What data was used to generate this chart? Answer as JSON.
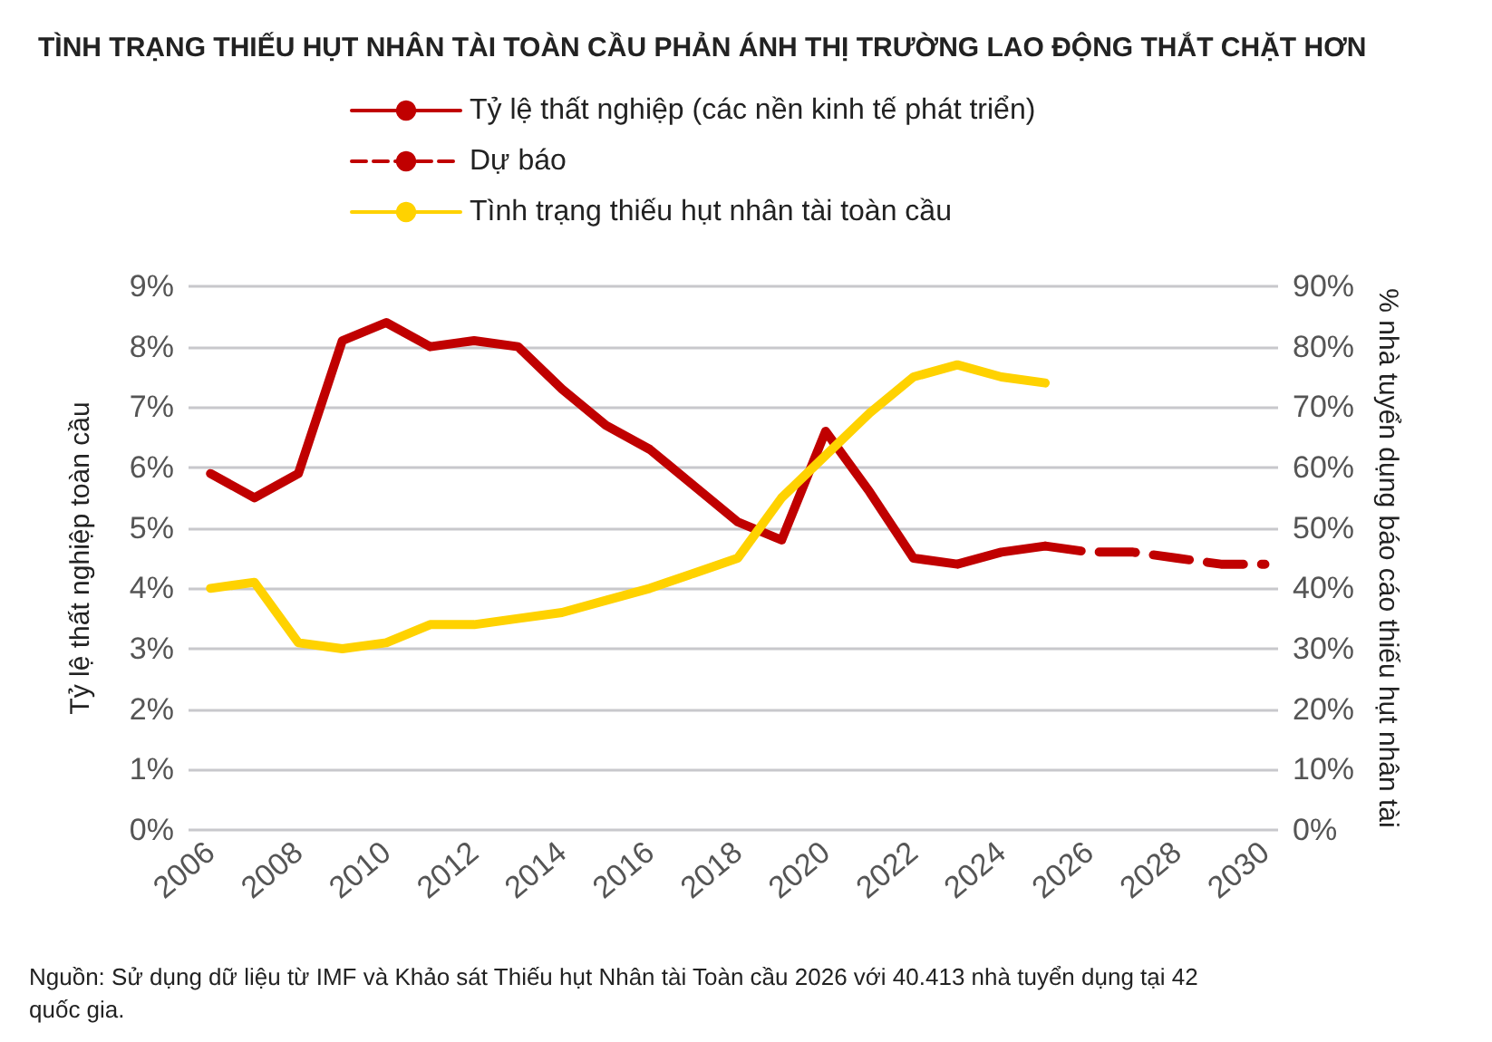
{
  "chart_data": {
    "type": "line",
    "title": "TÌNH TRẠNG THIẾU HỤT NHÂN TÀI TOÀN CẦU PHẢN ÁNH THỊ TRƯỜNG LAO ĐỘNG THẮT CHẶT HƠN",
    "ylabel": "Tỷ lệ thất nghiệp toàn cầu",
    "y2label": "% nhà tuyển dụng báo cáo thiếu hụt nhân tài",
    "annotations": [
      "Nguồn: Sử dụng dữ liệu từ IMF và Khảo sát Thiếu hụt Nhân tài Toàn cầu 2026 với 40.413 nhà tuyển dụng tại 42 quốc gia."
    ],
    "x": [
      2006,
      2007,
      2008,
      2009,
      2010,
      2011,
      2012,
      2013,
      2014,
      2015,
      2016,
      2017,
      2018,
      2019,
      2020,
      2021,
      2022,
      2023,
      2024,
      2025
    ],
    "series": [
      {
        "name": "Tỷ lệ thất nghiệp (các nền kinh tế phát triển)",
        "color": "#c00000",
        "values": [
          5.9,
          5.5,
          5.9,
          8.1,
          8.4,
          8.0,
          8.1,
          8.0,
          7.3,
          6.7,
          6.3,
          5.7,
          5.1,
          4.8,
          6.6,
          5.6,
          4.5,
          4.4,
          4.6,
          4.7
        ]
      },
      {
        "name": "Dự báo",
        "color": "#c00000",
        "line_style": "dashed",
        "x": [
          2025,
          2026,
          2027,
          2028,
          2029,
          2030
        ],
        "values": [
          4.7,
          4.6,
          4.6,
          4.5,
          4.4,
          4.4
        ]
      },
      {
        "name": "Tình trạng thiếu hụt nhân tài toàn cầu",
        "color": "#ffd200",
        "axis": "y2",
        "values": [
          40,
          41,
          31,
          30,
          31,
          34,
          34,
          35,
          36,
          38,
          40,
          42.5,
          45,
          55,
          62,
          69,
          75,
          77,
          75,
          74
        ]
      }
    ],
    "xlim": [
      2005.5,
      2030.3
    ],
    "xticks": [
      2006,
      2008,
      2010,
      2012,
      2014,
      2016,
      2018,
      2020,
      2022,
      2024,
      2026,
      2028,
      2030
    ],
    "ylim": [
      0,
      9
    ],
    "yticks": [
      {
        "value": 0,
        "label": "0%"
      },
      {
        "value": 1,
        "label": "1%"
      },
      {
        "value": 2,
        "label": "2%"
      },
      {
        "value": 3,
        "label": "3%"
      },
      {
        "value": 4,
        "label": "4%"
      },
      {
        "value": 5,
        "label": "5%"
      },
      {
        "value": 6,
        "label": "6%"
      },
      {
        "value": 7,
        "label": "7%"
      },
      {
        "value": 8,
        "label": "8%"
      },
      {
        "value": 9,
        "label": "9%"
      }
    ],
    "y2lim": [
      0,
      90
    ],
    "y2ticks": [
      {
        "value": 0,
        "label": "0%"
      },
      {
        "value": 10,
        "label": "10%"
      },
      {
        "value": 20,
        "label": "20%"
      },
      {
        "value": 30,
        "label": "30%"
      },
      {
        "value": 40,
        "label": "40%"
      },
      {
        "value": 50,
        "label": "50%"
      },
      {
        "value": 60,
        "label": "60%"
      },
      {
        "value": 70,
        "label": "70%"
      },
      {
        "value": 80,
        "label": "80%"
      },
      {
        "value": 90,
        "label": "90%"
      }
    ],
    "grid": "y",
    "legend": "top left",
    "line_style": "solid",
    "marker": "none"
  }
}
